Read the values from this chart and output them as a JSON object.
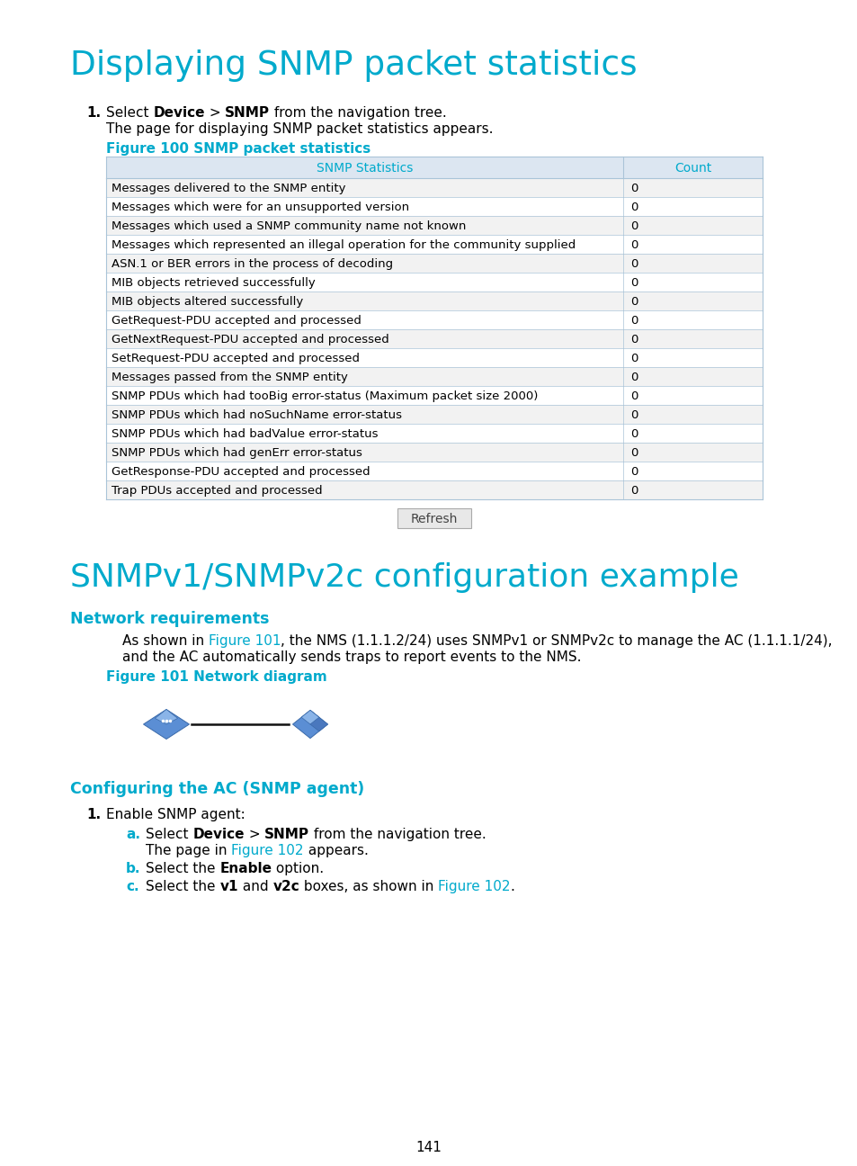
{
  "page_bg": "#ffffff",
  "title1": "Displaying SNMP packet statistics",
  "title1_color": "#00aacc",
  "title2": "SNMPv1/SNMPv2c configuration example",
  "title2_color": "#00aacc",
  "section_color": "#00aacc",
  "section1": "Network requirements",
  "section2": "Configuring the AC (SNMP agent)",
  "figure100_label": "Figure 100 SNMP packet statistics",
  "figure100_color": "#00aacc",
  "table_header": [
    "SNMP Statistics",
    "Count"
  ],
  "table_header_color": "#00aacc",
  "table_header_bg": "#dce6f1",
  "table_border_color": "#aac4d8",
  "table_rows": [
    [
      "Messages delivered to the SNMP entity",
      "0"
    ],
    [
      "Messages which were for an unsupported version",
      "0"
    ],
    [
      "Messages which used a SNMP community name not known",
      "0"
    ],
    [
      "Messages which represented an illegal operation for the community supplied",
      "0"
    ],
    [
      "ASN.1 or BER errors in the process of decoding",
      "0"
    ],
    [
      "MIB objects retrieved successfully",
      "0"
    ],
    [
      "MIB objects altered successfully",
      "0"
    ],
    [
      "GetRequest-PDU accepted and processed",
      "0"
    ],
    [
      "GetNextRequest-PDU accepted and processed",
      "0"
    ],
    [
      "SetRequest-PDU accepted and processed",
      "0"
    ],
    [
      "Messages passed from the SNMP entity",
      "0"
    ],
    [
      "SNMP PDUs which had tooBig error-status (Maximum packet size 2000)",
      "0"
    ],
    [
      "SNMP PDUs which had noSuchName error-status",
      "0"
    ],
    [
      "SNMP PDUs which had badValue error-status",
      "0"
    ],
    [
      "SNMP PDUs which had genErr error-status",
      "0"
    ],
    [
      "GetResponse-PDU accepted and processed",
      "0"
    ],
    [
      "Trap PDUs accepted and processed",
      "0"
    ]
  ],
  "row_bg_odd": "#f2f2f2",
  "row_bg_even": "#ffffff",
  "refresh_label": "Refresh",
  "figure101_label": "Figure 101 Network diagram",
  "figure101_color": "#00aacc",
  "page_number": "141",
  "link_color": "#00aacc",
  "text_color": "#000000"
}
